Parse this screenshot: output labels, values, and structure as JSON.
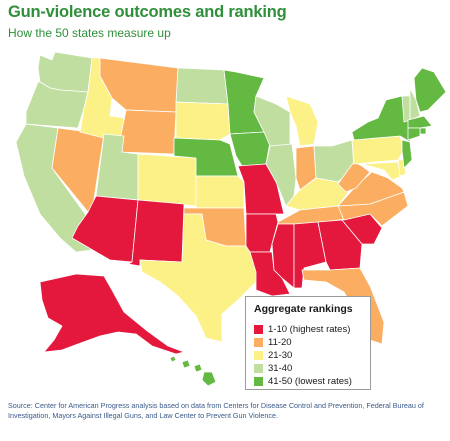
{
  "title": "Gun-violence outcomes and ranking",
  "subtitle": "How the 50 states measure up",
  "legend": {
    "title": "Aggregate rankings",
    "items": [
      {
        "label": "1-10 (highest rates)",
        "color": "#e4173c"
      },
      {
        "label": "11-20",
        "color": "#fbae62"
      },
      {
        "label": "21-30",
        "color": "#fbf187"
      },
      {
        "label": "31-40",
        "color": "#bfdea0"
      },
      {
        "label": "41-50 (lowest rates)",
        "color": "#63b941"
      }
    ]
  },
  "source": "Source: Center for American Progress analysis based on data from Centers for Disease Control and Prevention, Federal Bureau of Investigation, Mayors Against Illegal Guns, and Law Center to Prevent Gun Violence.",
  "state_tiers": {
    "WA": 4,
    "OR": 4,
    "CA": 4,
    "NV": 2,
    "ID": 3,
    "MT": 2,
    "WY": 2,
    "UT": 4,
    "AZ": 1,
    "CO": 3,
    "NM": 1,
    "ND": 4,
    "SD": 3,
    "NE": 5,
    "KS": 3,
    "OK": 2,
    "TX": 3,
    "MN": 5,
    "IA": 5,
    "MO": 1,
    "AR": 1,
    "LA": 1,
    "WI": 4,
    "IL": 4,
    "MI": 3,
    "IN": 2,
    "OH": 4,
    "KY": 3,
    "TN": 2,
    "MS": 1,
    "AL": 1,
    "GA": 1,
    "FL": 2,
    "SC": 1,
    "NC": 2,
    "VA": 2,
    "WV": 2,
    "PA": 3,
    "NY": 5,
    "VT": 4,
    "NH": 4,
    "ME": 5,
    "MA": 5,
    "RI": 5,
    "CT": 5,
    "NJ": 5,
    "DE": 3,
    "MD": 3,
    "AK": 1,
    "HI": 5
  }
}
